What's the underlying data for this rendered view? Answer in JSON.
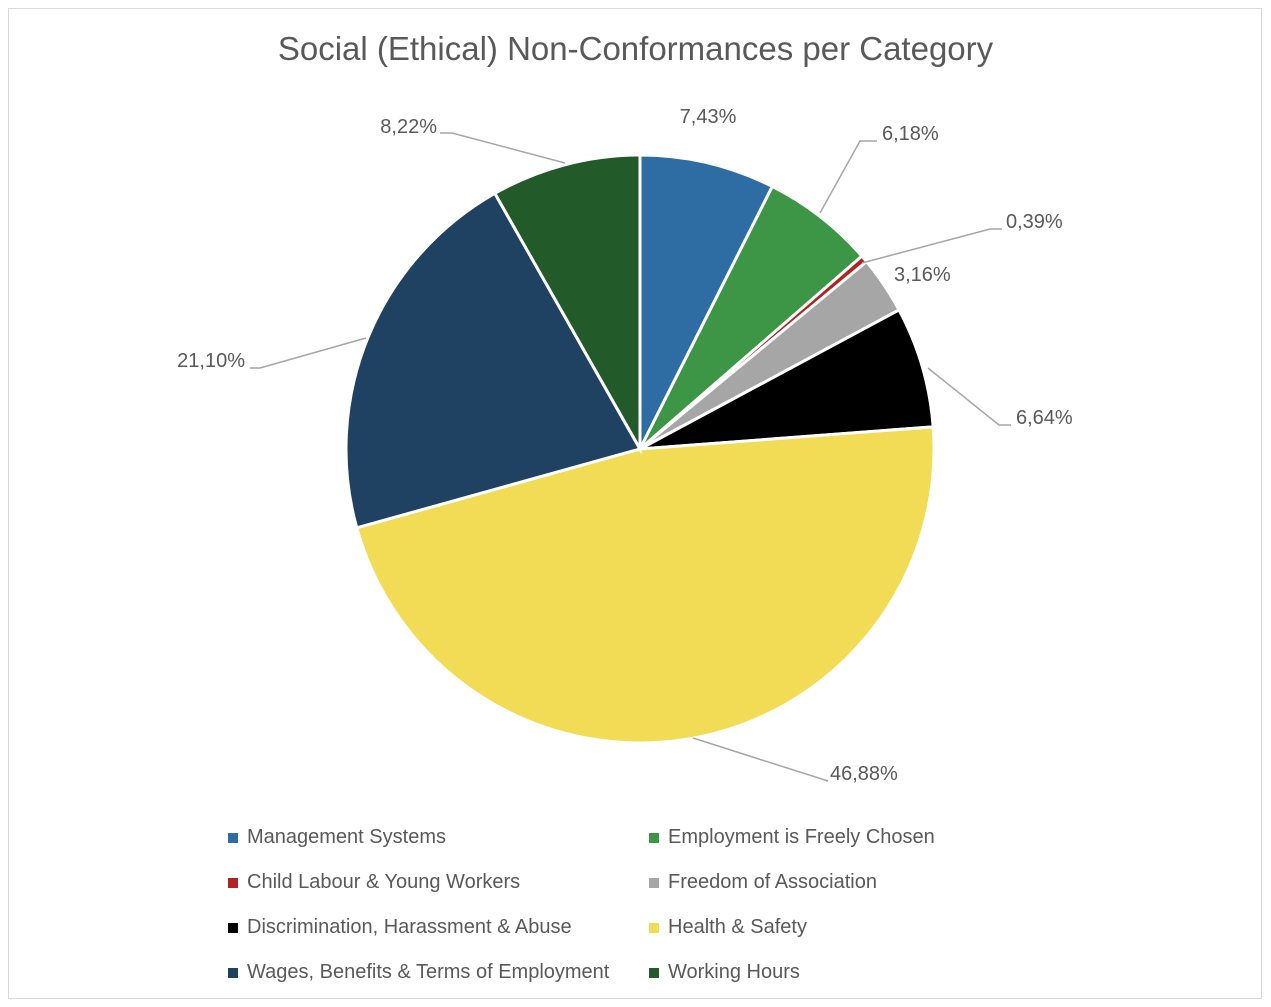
{
  "chart_data": {
    "type": "pie",
    "title": "Social (Ethical) Non-Conformances per Category",
    "legend_position": "bottom",
    "slices": [
      {
        "label": "Management Systems",
        "value": 7.43,
        "value_label": "7,43%",
        "color": "#2e6da4"
      },
      {
        "label": "Employment is Freely Chosen",
        "value": 6.18,
        "value_label": "6,18%",
        "color": "#3c9645"
      },
      {
        "label": "Child Labour & Young Workers",
        "value": 0.39,
        "value_label": "0,39%",
        "color": "#b22222"
      },
      {
        "label": "Freedom of Association",
        "value": 3.16,
        "value_label": "3,16%",
        "color": "#a6a6a6"
      },
      {
        "label": "Discrimination, Harassment & Abuse",
        "value": 6.64,
        "value_label": "6,64%",
        "color": "#000000"
      },
      {
        "label": "Health & Safety",
        "value": 46.88,
        "value_label": "46,88%",
        "color": "#f2db55"
      },
      {
        "label": "Wages, Benefits & Terms of Employment",
        "value": 21.1,
        "value_label": "21,10%",
        "color": "#1f4263"
      },
      {
        "label": "Working Hours",
        "value": 8.22,
        "value_label": "8,22%",
        "color": "#235a29"
      }
    ]
  }
}
